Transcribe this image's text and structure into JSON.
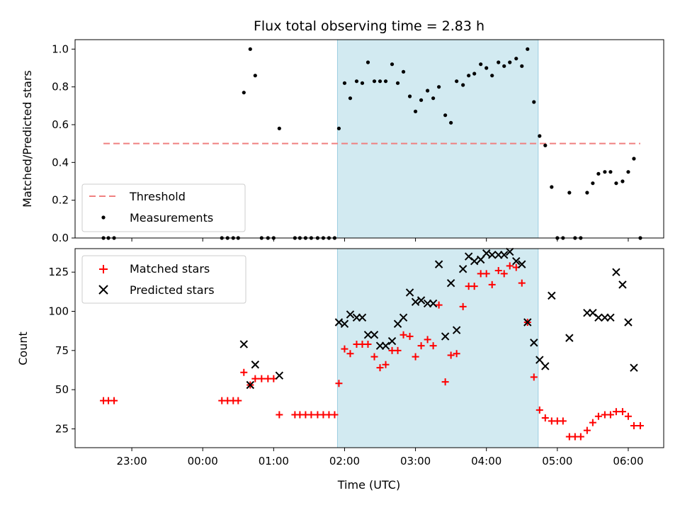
{
  "chart_data": {
    "type": "scatter",
    "title": "Flux total observing time = 2.83 h",
    "xlabel": "Time (UTC)",
    "xlim": [
      22.2,
      30.5
    ],
    "x_ticks": [
      {
        "v": 23,
        "label": "23:00"
      },
      {
        "v": 24,
        "label": "00:00"
      },
      {
        "v": 25,
        "label": "01:00"
      },
      {
        "v": 26,
        "label": "02:00"
      },
      {
        "v": 27,
        "label": "03:00"
      },
      {
        "v": 28,
        "label": "04:00"
      },
      {
        "v": 29,
        "label": "05:00"
      },
      {
        "v": 30,
        "label": "06:00"
      }
    ],
    "observing_window": [
      25.9,
      28.73
    ],
    "top": {
      "ylabel": "Matched/Predicted stars",
      "ylim": [
        0,
        1.05
      ],
      "y_ticks": [
        {
          "v": 0.0,
          "label": "0.0"
        },
        {
          "v": 0.2,
          "label": "0.2"
        },
        {
          "v": 0.4,
          "label": "0.4"
        },
        {
          "v": 0.6,
          "label": "0.6"
        },
        {
          "v": 0.8,
          "label": "0.8"
        },
        {
          "v": 1.0,
          "label": "1.0"
        }
      ],
      "threshold": {
        "name": "Threshold",
        "value": 0.5,
        "x_range": [
          22.6,
          30.17
        ],
        "color": "#f08080"
      },
      "measurements": {
        "name": "Measurements",
        "color": "#000000",
        "x": [
          22.6,
          22.67,
          22.75,
          24.27,
          24.35,
          24.43,
          24.5,
          24.58,
          24.67,
          24.74,
          24.83,
          24.92,
          25.0,
          25.08,
          25.3,
          25.37,
          25.45,
          25.53,
          25.62,
          25.7,
          25.78,
          25.86,
          25.92,
          26.0,
          26.08,
          26.17,
          26.25,
          26.33,
          26.42,
          26.5,
          26.58,
          26.67,
          26.75,
          26.83,
          26.92,
          27.0,
          27.08,
          27.17,
          27.25,
          27.33,
          27.42,
          27.5,
          27.58,
          27.67,
          27.75,
          27.83,
          27.92,
          28.0,
          28.08,
          28.17,
          28.25,
          28.33,
          28.42,
          28.5,
          28.58,
          28.67,
          28.75,
          28.83,
          28.92,
          29.0,
          29.08,
          29.17,
          29.25,
          29.33,
          29.42,
          29.5,
          29.58,
          29.67,
          29.75,
          29.83,
          29.92,
          30.0,
          30.08,
          30.17
        ],
        "y": [
          0,
          0,
          0,
          0,
          0,
          0,
          0,
          0.77,
          1.0,
          0.86,
          0,
          0,
          0,
          0.58,
          0,
          0,
          0,
          0,
          0,
          0,
          0,
          0,
          0.58,
          0.82,
          0.74,
          0.83,
          0.82,
          0.93,
          0.83,
          0.83,
          0.83,
          0.92,
          0.82,
          0.88,
          0.75,
          0.67,
          0.73,
          0.78,
          0.74,
          0.8,
          0.65,
          0.61,
          0.83,
          0.81,
          0.86,
          0.87,
          0.92,
          0.9,
          0.86,
          0.93,
          0.91,
          0.93,
          0.95,
          0.91,
          1.0,
          0.72,
          0.54,
          0.49,
          0.27,
          0,
          0,
          0.24,
          0,
          0,
          0.24,
          0.29,
          0.34,
          0.35,
          0.35,
          0.29,
          0.3,
          0.35,
          0.42,
          0
        ]
      }
    },
    "bottom": {
      "ylabel": "Count",
      "ylim": [
        13,
        140
      ],
      "y_ticks": [
        {
          "v": 25,
          "label": "25"
        },
        {
          "v": 50,
          "label": "50"
        },
        {
          "v": 75,
          "label": "75"
        },
        {
          "v": 100,
          "label": "100"
        },
        {
          "v": 125,
          "label": "125"
        }
      ],
      "matched": {
        "name": "Matched stars",
        "color": "#ff0000",
        "x": [
          22.6,
          22.67,
          22.75,
          24.27,
          24.35,
          24.43,
          24.5,
          24.58,
          24.67,
          24.74,
          24.83,
          24.92,
          25.0,
          25.08,
          25.3,
          25.37,
          25.45,
          25.53,
          25.62,
          25.7,
          25.78,
          25.86,
          25.92,
          26.0,
          26.08,
          26.17,
          26.25,
          26.33,
          26.42,
          26.5,
          26.58,
          26.67,
          26.75,
          26.83,
          26.92,
          27.0,
          27.08,
          27.17,
          27.25,
          27.33,
          27.42,
          27.5,
          27.58,
          27.67,
          27.75,
          27.83,
          27.92,
          28.0,
          28.08,
          28.17,
          28.25,
          28.33,
          28.42,
          28.5,
          28.58,
          28.67,
          28.75,
          28.83,
          28.92,
          29.0,
          29.08,
          29.17,
          29.25,
          29.33,
          29.42,
          29.5,
          29.58,
          29.67,
          29.75,
          29.83,
          29.92,
          30.0,
          30.08,
          30.17
        ],
        "y": [
          43,
          43,
          43,
          43,
          43,
          43,
          43,
          61,
          53,
          57,
          57,
          57,
          57,
          34,
          34,
          34,
          34,
          34,
          34,
          34,
          34,
          34,
          54,
          76,
          73,
          79,
          79,
          79,
          71,
          64,
          66,
          75,
          75,
          85,
          84,
          71,
          78,
          82,
          78,
          104,
          55,
          72,
          73,
          103,
          116,
          116,
          124,
          124,
          117,
          126,
          124,
          129,
          128,
          118,
          93,
          58,
          37,
          32,
          30,
          30,
          30,
          20,
          20,
          20,
          24,
          29,
          33,
          34,
          34,
          36,
          36,
          33,
          27,
          27
        ]
      },
      "predicted": {
        "name": "Predicted stars",
        "color": "#000000",
        "x": [
          24.58,
          24.67,
          24.74,
          25.08,
          25.92,
          26.0,
          26.08,
          26.17,
          26.25,
          26.33,
          26.42,
          26.5,
          26.58,
          26.67,
          26.75,
          26.83,
          26.92,
          27.0,
          27.08,
          27.17,
          27.25,
          27.33,
          27.42,
          27.5,
          27.58,
          27.67,
          27.75,
          27.83,
          27.92,
          28.0,
          28.08,
          28.17,
          28.25,
          28.33,
          28.42,
          28.5,
          28.58,
          28.67,
          28.75,
          28.83,
          28.92,
          29.17,
          29.42,
          29.5,
          29.58,
          29.67,
          29.75,
          29.83,
          29.92,
          30.0,
          30.08
        ],
        "y": [
          79,
          53,
          66,
          59,
          93,
          92,
          98,
          96,
          96,
          85,
          85,
          78,
          78,
          81,
          92,
          96,
          112,
          106,
          107,
          105,
          105,
          130,
          84,
          118,
          88,
          127,
          135,
          132,
          133,
          137,
          136,
          136,
          136,
          138,
          132,
          130,
          93,
          80,
          69,
          65,
          110,
          83,
          99,
          99,
          96,
          96,
          96,
          125,
          117,
          93,
          64
        ]
      }
    }
  }
}
